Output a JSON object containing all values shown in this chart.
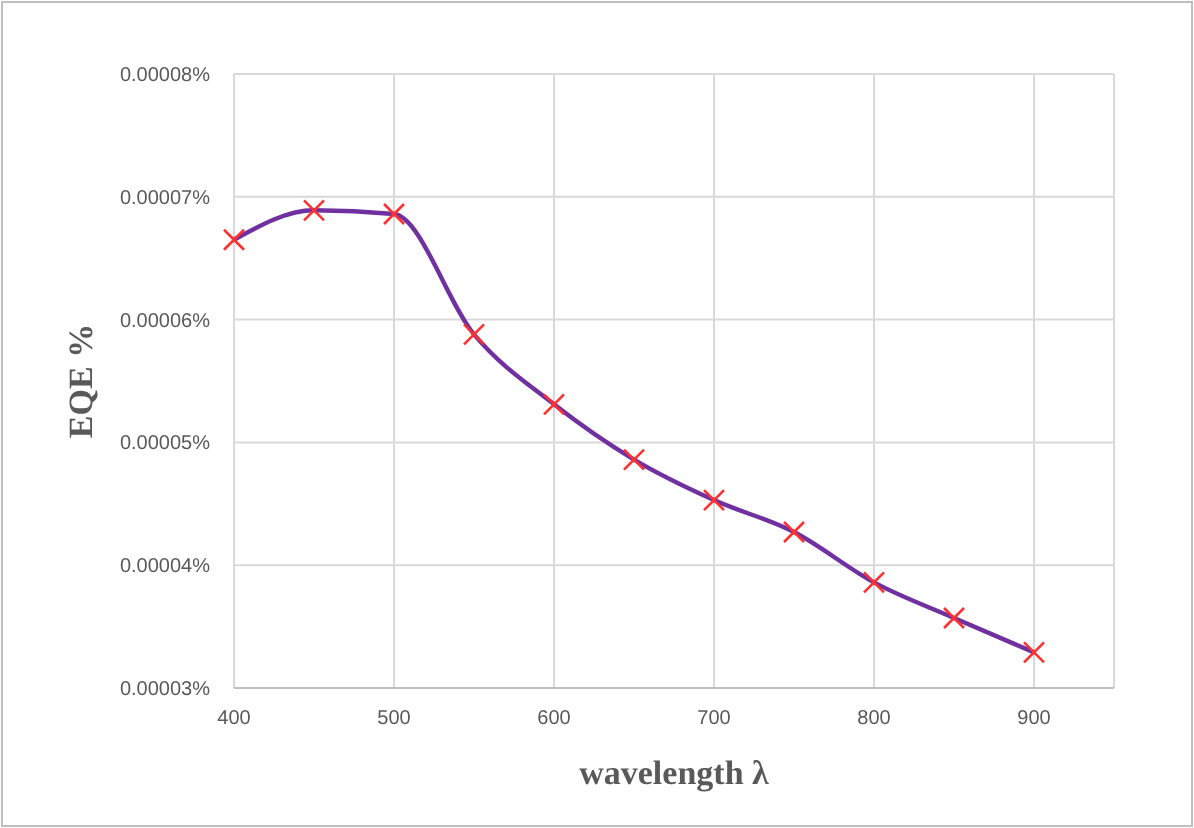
{
  "chart_data": {
    "type": "line",
    "xlabel": "wavelength λ",
    "ylabel": "EQE %",
    "x": [
      400,
      450,
      500,
      550,
      600,
      650,
      700,
      750,
      800,
      850,
      900
    ],
    "series": [
      {
        "color": "#7030a0",
        "marker": "none",
        "values": [
          6.65e-05,
          6.89e-05,
          6.86e-05,
          5.88e-05,
          5.31e-05,
          4.86e-05,
          4.53e-05,
          4.27e-05,
          3.86e-05,
          3.57e-05,
          3.29e-05
        ]
      },
      {
        "type": "scatter",
        "color": "#ff3030",
        "marker": "cross",
        "values": [
          6.65e-05,
          6.89e-05,
          6.86e-05,
          5.88e-05,
          5.31e-05,
          4.86e-05,
          4.53e-05,
          4.27e-05,
          3.86e-05,
          3.57e-05,
          3.29e-05
        ]
      }
    ],
    "xlim": [
      400,
      950
    ],
    "xticks": [
      400,
      500,
      600,
      700,
      800,
      900
    ],
    "ylim": [
      3e-05,
      8e-05
    ],
    "yticks": [
      {
        "value": 3e-05,
        "label": "0.00003%"
      },
      {
        "value": 4e-05,
        "label": "0.00004%"
      },
      {
        "value": 5e-05,
        "label": "0.00005%"
      },
      {
        "value": 6e-05,
        "label": "0.00006%"
      },
      {
        "value": 7e-05,
        "label": "0.00007%"
      },
      {
        "value": 8e-05,
        "label": "0.00008%"
      }
    ],
    "grid": true
  }
}
